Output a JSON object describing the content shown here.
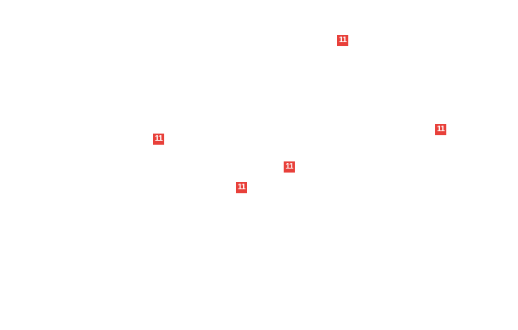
{
  "map": {
    "route_color": "#e8403a",
    "shields": [
      {
        "label": "11"
      },
      {
        "label": "11"
      },
      {
        "label": "11"
      },
      {
        "label": "11"
      },
      {
        "label": "11"
      }
    ]
  }
}
